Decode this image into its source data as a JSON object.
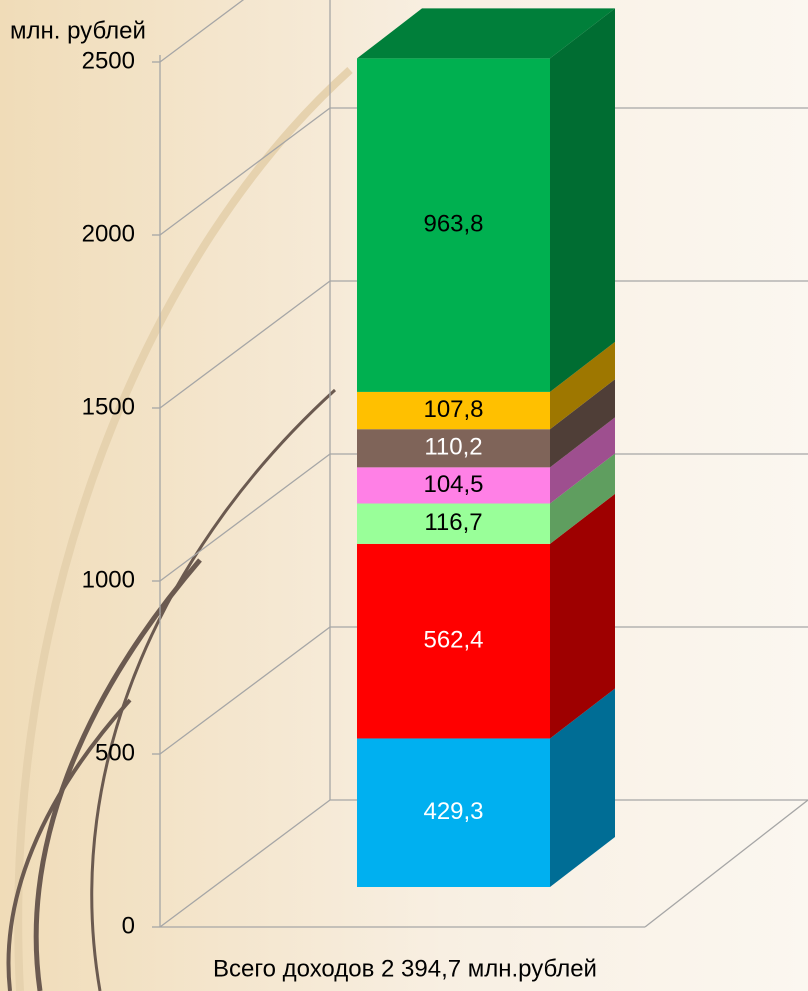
{
  "chart_data": {
    "type": "stacked-bar-3d",
    "y_axis_label": "млн. рублей",
    "categories": [
      "Всего доходов 2 394,7 млн.рублей"
    ],
    "series": [
      {
        "color": "#00b0f0",
        "values": [
          429.3
        ],
        "value_labels": [
          "429,3"
        ],
        "label_color": "#ffffff"
      },
      {
        "color": "#ff0000",
        "values": [
          562.4
        ],
        "value_labels": [
          "562,4"
        ],
        "label_color": "#ffffff"
      },
      {
        "color": "#99ff99",
        "values": [
          116.7
        ],
        "value_labels": [
          "116,7"
        ],
        "label_color": "#000000"
      },
      {
        "color": "#ff80e6",
        "values": [
          104.5
        ],
        "value_labels": [
          "104,5"
        ],
        "label_color": "#000000"
      },
      {
        "color": "#7f6459",
        "values": [
          110.2
        ],
        "value_labels": [
          "110,2"
        ],
        "label_color": "#ffffff"
      },
      {
        "color": "#ffc000",
        "values": [
          107.8
        ],
        "value_labels": [
          "107,8"
        ],
        "label_color": "#000000"
      },
      {
        "color": "#00b050",
        "values": [
          963.8
        ],
        "value_labels": [
          "963,8"
        ],
        "label_color": "#000000"
      }
    ],
    "ylim": [
      0,
      2500
    ],
    "yticks": [
      0,
      500,
      1000,
      1500,
      2000,
      2500
    ],
    "grid": true
  }
}
